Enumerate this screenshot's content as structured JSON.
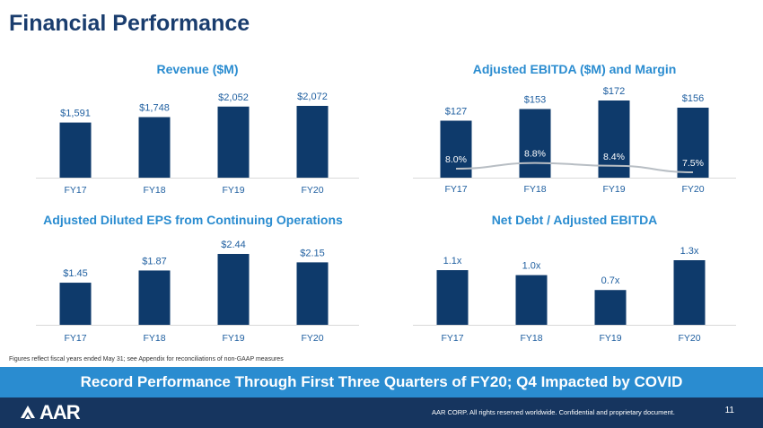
{
  "page": {
    "title": "Financial Performance",
    "footnote": "Figures reflect fiscal years ended May 31; see Appendix for reconciliations of non-GAAP measures",
    "banner": "Record Performance Through First Three Quarters of FY20; Q4 Impacted by COVID",
    "footer_text": "AAR CORP. All rights reserved worldwide. Confidential and proprietary document.",
    "page_number": "11",
    "logo_text": "AAR"
  },
  "colors": {
    "bar": "#0e3a6b",
    "title_blue": "#2a8cd0",
    "label_blue": "#1f5fa0",
    "line_gray": "#b8bec4"
  },
  "chart_data": [
    {
      "id": "revenue",
      "type": "bar",
      "title": "Revenue ($M)",
      "categories": [
        "FY17",
        "FY18",
        "FY19",
        "FY20"
      ],
      "values": [
        1591,
        1748,
        2052,
        2072
      ],
      "labels": [
        "$1,591",
        "$1,748",
        "$2,052",
        "$2,072"
      ]
    },
    {
      "id": "ebitda",
      "type": "bar",
      "title": "Adjusted EBITDA ($M) and Margin",
      "categories": [
        "FY17",
        "FY18",
        "FY19",
        "FY20"
      ],
      "values": [
        127,
        153,
        172,
        156
      ],
      "labels": [
        "$127",
        "$153",
        "$172",
        "$156"
      ],
      "line_series": {
        "values": [
          8.0,
          8.8,
          8.4,
          7.5
        ],
        "labels": [
          "8.0%",
          "8.8%",
          "8.4%",
          "7.5%"
        ]
      }
    },
    {
      "id": "eps",
      "type": "bar",
      "title": "Adjusted Diluted EPS from Continuing Operations",
      "categories": [
        "FY17",
        "FY18",
        "FY19",
        "FY20"
      ],
      "values": [
        1.45,
        1.87,
        2.44,
        2.15
      ],
      "labels": [
        "$1.45",
        "$1.87",
        "$2.44",
        "$2.15"
      ]
    },
    {
      "id": "leverage",
      "type": "bar",
      "title": "Net Debt / Adjusted EBITDA",
      "categories": [
        "FY17",
        "FY18",
        "FY19",
        "FY20"
      ],
      "values": [
        1.1,
        1.0,
        0.7,
        1.3
      ],
      "labels": [
        "1.1x",
        "1.0x",
        "0.7x",
        "1.3x"
      ]
    }
  ]
}
